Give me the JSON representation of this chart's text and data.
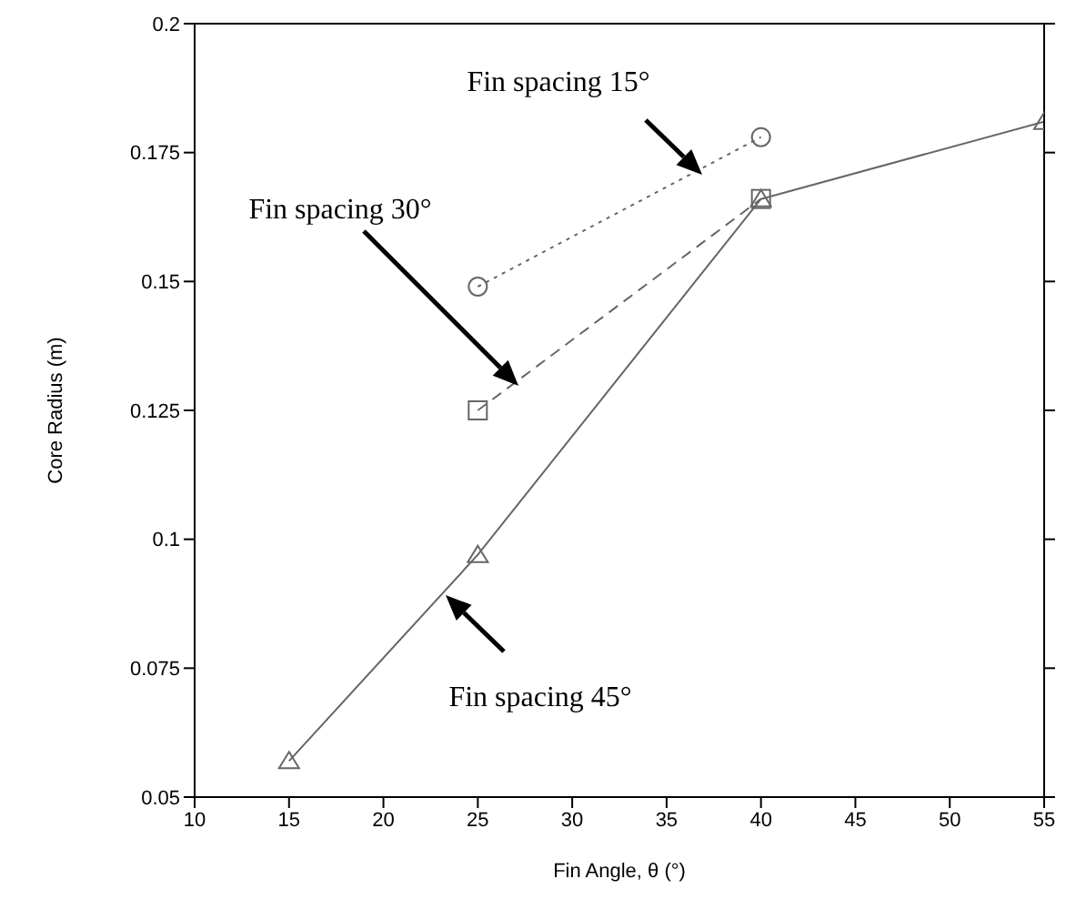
{
  "chart_data": {
    "type": "line",
    "xlabel": "Fin Angle, θ  (°)",
    "ylabel": "Core Radius (m)",
    "xlim": [
      10,
      55
    ],
    "xticks": [
      10,
      15,
      20,
      25,
      30,
      35,
      40,
      45,
      50,
      55
    ],
    "ylim": [
      0.05,
      0.2
    ],
    "yticks": [
      0.05,
      0.075,
      0.1,
      0.125,
      0.15,
      0.175,
      0.2
    ],
    "series": [
      {
        "color": "#666666",
        "marker": "circle",
        "line_style": "dotted",
        "x": [
          25,
          40
        ],
        "values": [
          0.149,
          0.178
        ]
      },
      {
        "color": "#666666",
        "marker": "square",
        "line_style": "dashed",
        "x": [
          25,
          40
        ],
        "values": [
          0.125,
          0.166
        ]
      },
      {
        "color": "#666666",
        "marker": "triangle",
        "line_style": "solid",
        "x": [
          15,
          25,
          40,
          55
        ],
        "values": [
          0.057,
          0.097,
          0.166,
          0.181
        ]
      }
    ],
    "annotations": [
      "Fin spacing 15°",
      "Fin spacing 30°",
      "Fin spacing 45°"
    ]
  }
}
